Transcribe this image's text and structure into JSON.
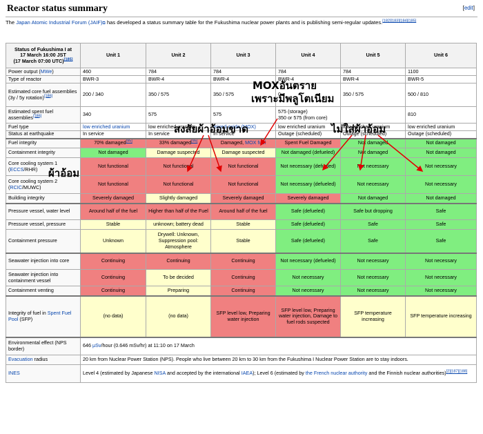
{
  "header": {
    "title": "Reactor status summary",
    "edit_label": "edit"
  },
  "intro": {
    "pre": "The ",
    "link": "Japan Atomic Industrial Forum (JAIF)",
    "post": " has developed a status summary table for the Fukushima nuclear power plants and is publishing semi-regular updates.",
    "refs": "[182][183][184][185]"
  },
  "table": {
    "corner_lines": [
      "Status of Fukushima I at",
      "17 March 16:00 JST",
      "(17 March 07:00 UTC)"
    ],
    "corner_ref": "[185]",
    "units": [
      "Unit 1",
      "Unit 2",
      "Unit 3",
      "Unit 4",
      "Unit 5",
      "Unit 6"
    ],
    "rows": {
      "power_output": {
        "label": "Power output (",
        "label_link": "MWe",
        "label_post": ")",
        "cells": [
          "460",
          "784",
          "784",
          "784",
          "784",
          "1100"
        ]
      },
      "reactor_type": {
        "label": "Type of reactor",
        "cells": [
          "BWR-3",
          "BWR-4",
          "BWR-4",
          "BWR-4",
          "BWR-4",
          "BWR-5"
        ]
      },
      "core_fuel": {
        "label": "Estimated core fuel assemblies (3y / 5y rotation)",
        "label_ref": "[186]",
        "cells": [
          "200 / 340",
          "350 / 575",
          "350 / 575",
          "0",
          "350 / 575",
          "500 / 810"
        ]
      },
      "spent_fuel": {
        "label": "Estimated spent fuel assemblies",
        "label_ref": "[186]",
        "cells": [
          "340",
          "575",
          "575",
          "575 (storage)",
          "",
          "810"
        ],
        "unit4_line2": "350 or 575 (from core)"
      },
      "fuel_type": {
        "label": "Fuel type",
        "cells": [
          "low enriched uranium",
          "low enriched uranium",
          "mixed-oxide (MOX)",
          "low enriched uranium",
          "low enriched uranium",
          "low enriched uranium"
        ]
      },
      "status_eq": {
        "label": "Status at earthquake",
        "cells": [
          "In service",
          "In service",
          "In service",
          "Outage (scheduled)",
          "Outage (scheduled)",
          "Outage (scheduled)"
        ]
      },
      "fuel_integrity": {
        "label": "Fuel integrity",
        "cells": [
          "70% damaged",
          "33% damaged",
          "Damaged, ",
          "Spent Fuel Damaged",
          "Not damaged",
          "Not damaged"
        ],
        "refs": [
          "[95]",
          "[95]"
        ],
        "unit3_link": "MOX fuel"
      },
      "containment_integrity": {
        "label": "Containment integrity",
        "cells": [
          "Not damaged",
          "Damage suspected",
          "Damage suspected",
          "Not damaged (defueled)",
          "Not damaged",
          "Not damaged"
        ]
      },
      "ccs1": {
        "label": "Core cooling system 1 (",
        "label_link": "ECCS",
        "label_post": "/RHR)",
        "cells": [
          "Not functional",
          "Not functional",
          "Not functional",
          "Not necessary (defueled)",
          "Not necessary",
          "Not necessary"
        ]
      },
      "ccs2": {
        "label": "Core cooling system 2 (",
        "label_link": "RCIC",
        "label_post": "/MUWC)",
        "cells": [
          "Not functional",
          "Not functional",
          "Not functional",
          "Not necessary (defueled)",
          "Not necessary",
          "Not necessary"
        ]
      },
      "building": {
        "label": "Building integrity",
        "cells": [
          "Severely damaged",
          "Slightly damaged",
          "Severely damaged",
          "Severely damaged",
          "Not damaged",
          "Not damaged"
        ]
      },
      "pv_water": {
        "label": "Pressure vessel, water level",
        "cells": [
          "Around half of the fuel",
          "Higher than half of the Fuel",
          "Around half of the fuel",
          "Safe (defueled)",
          "Safe but dropping",
          "Safe"
        ]
      },
      "pv_pressure": {
        "label": "Pressure vessel, pressure",
        "cells": [
          "Stable",
          "unknown; battery dead",
          "Stable",
          "Safe (defueled)",
          "Safe",
          "Safe"
        ]
      },
      "cont_pressure": {
        "label": "Containment pressure",
        "cells": [
          "Unknown",
          "Drywell: Unknown, Suppression pool: Atmosphere",
          "Stable",
          "Safe (defueled)",
          "Safe",
          "Safe"
        ]
      },
      "sw_core": {
        "label": "Seawater injection into core",
        "cells": [
          "Continuing",
          "Continuing",
          "Continuing",
          "Not necessary (defueled)",
          "Not necessary",
          "Not necessary"
        ]
      },
      "sw_cv": {
        "label": "Seawater injection into containment vessel",
        "cells": [
          "Continuing",
          "To be decided",
          "Continuing",
          "Not necessary",
          "Not necessary",
          "Not necessary"
        ]
      },
      "venting": {
        "label": "Containment venting",
        "cells": [
          "Continuing",
          "Preparing",
          "Continuing",
          "Not necessary",
          "Not necessary",
          "Not necessary"
        ]
      },
      "sfp": {
        "label": "Integrity of fuel in ",
        "label_link": "Spent Fuel Pool",
        "label_post": " (SFP)",
        "cells": [
          "(no data)",
          "(no data)",
          "SFP level low, Preparing water injection",
          "SFP level low, Preparing water injection, Damage to fuel rods suspected",
          "SFP temperature increasing",
          "SFP temperature increasing"
        ]
      },
      "env": {
        "label": "Environmental effect (NPS border)",
        "pre": "646 ",
        "link": "μSv",
        "post": "/hour (0.646 mSv/hr) at 11:10 on 17 March"
      },
      "evac": {
        "label_link": "Evacuation",
        "label_post": " radius",
        "text": "20 km from Nuclear Power Station (NPS). People who live between 20 km to 30 km from the Fukushima I Nuclear Power Station are to stay indoors."
      },
      "ines": {
        "label_link": "INES",
        "t1": "Level 4 (estimated by Japanese ",
        "l1": "NISA",
        "t2": " and accepted by the international ",
        "l2": "IAEA",
        "t3": "); Level 6 (estimated by ",
        "l3": "the French nuclear authority",
        "t4": " and the Finnish nuclear authorities)",
        "refs": "[2][187][188]"
      }
    }
  },
  "overlay": {
    "mox_danger": "MOXอันตราย",
    "plutonium": "เพราะมีพลูโตเนียม",
    "suspect_leak": "สงสัยผ้าอ้อมขาด",
    "no_diaper": "ไม่ใส่ผ้าอ้อม",
    "diaper": "ผ้าอ้อม"
  },
  "colors": {
    "red": "#f08080",
    "green": "#80ee80",
    "yellow": "#ffffcc",
    "link": "#0645ad",
    "arrow": "#e00000"
  }
}
